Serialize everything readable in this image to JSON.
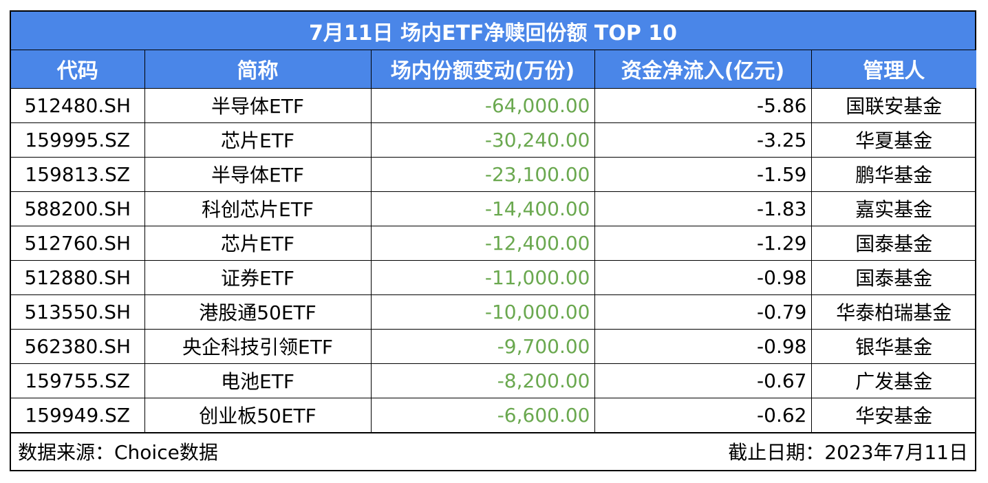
{
  "title": "7月11日 场内ETF净赎回份额 TOP 10",
  "colors": {
    "header_bg": "#4a86e8",
    "header_text": "#ffffff",
    "negative_green": "#6aa84f"
  },
  "columns": [
    "代码",
    "简称",
    "场内份额变动(万份)",
    "资金净流入(亿元)",
    "管理人"
  ],
  "rows": [
    {
      "code": "512480.SH",
      "name": "半导体ETF",
      "change": "-64,000.00",
      "flow": "-5.86",
      "manager": "国联安基金"
    },
    {
      "code": "159995.SZ",
      "name": "芯片ETF",
      "change": "-30,240.00",
      "flow": "-3.25",
      "manager": "华夏基金"
    },
    {
      "code": "159813.SZ",
      "name": "半导体ETF",
      "change": "-23,100.00",
      "flow": "-1.59",
      "manager": "鹏华基金"
    },
    {
      "code": "588200.SH",
      "name": "科创芯片ETF",
      "change": "-14,400.00",
      "flow": "-1.83",
      "manager": "嘉实基金"
    },
    {
      "code": "512760.SH",
      "name": "芯片ETF",
      "change": "-12,400.00",
      "flow": "-1.29",
      "manager": "国泰基金"
    },
    {
      "code": "512880.SH",
      "name": "证券ETF",
      "change": "-11,000.00",
      "flow": "-0.98",
      "manager": "国泰基金"
    },
    {
      "code": "513550.SH",
      "name": "港股通50ETF",
      "change": "-10,000.00",
      "flow": "-0.79",
      "manager": "华泰柏瑞基金"
    },
    {
      "code": "562380.SH",
      "name": "央企科技引领ETF",
      "change": "-9,700.00",
      "flow": "-0.98",
      "manager": "银华基金"
    },
    {
      "code": "159755.SZ",
      "name": "电池ETF",
      "change": "-8,200.00",
      "flow": "-0.67",
      "manager": "广发基金"
    },
    {
      "code": "159949.SZ",
      "name": "创业板50ETF",
      "change": "-6,600.00",
      "flow": "-0.62",
      "manager": "华安基金"
    }
  ],
  "footer": {
    "source": "数据来源：Choice数据",
    "date": "截止日期：2023年7月11日"
  }
}
